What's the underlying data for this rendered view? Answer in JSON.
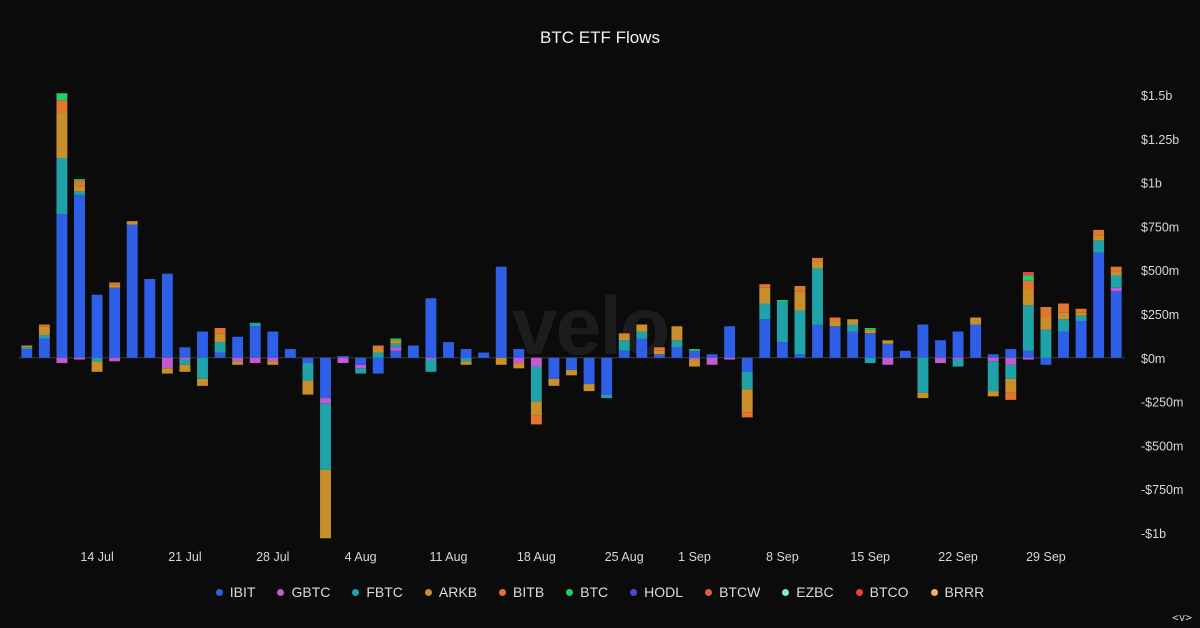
{
  "chart_data": {
    "type": "bar",
    "stacked": true,
    "title": "BTC ETF Flows",
    "watermark": "velo",
    "xlabel": "",
    "ylabel": "",
    "ylim": [
      -1000,
      1500
    ],
    "y_ticks": [
      {
        "value": 1500,
        "label": "$1.5b"
      },
      {
        "value": 1250,
        "label": "$1.25b"
      },
      {
        "value": 1000,
        "label": "$1b"
      },
      {
        "value": 750,
        "label": "$750m"
      },
      {
        "value": 500,
        "label": "$500m"
      },
      {
        "value": 250,
        "label": "$250m"
      },
      {
        "value": 0,
        "label": "$0m"
      },
      {
        "value": -250,
        "label": "-$250m"
      },
      {
        "value": -500,
        "label": "-$500m"
      },
      {
        "value": -750,
        "label": "-$750m"
      },
      {
        "value": -1000,
        "label": "-$1b"
      }
    ],
    "x_ticks": [
      {
        "bar": 4,
        "label": "14 Jul"
      },
      {
        "bar": 9,
        "label": "21 Jul"
      },
      {
        "bar": 14,
        "label": "28 Jul"
      },
      {
        "bar": 19,
        "label": "4 Aug"
      },
      {
        "bar": 24,
        "label": "11 Aug"
      },
      {
        "bar": 29,
        "label": "18 Aug"
      },
      {
        "bar": 34,
        "label": "25 Aug"
      },
      {
        "bar": 38,
        "label": "1 Sep"
      },
      {
        "bar": 43,
        "label": "8 Sep"
      },
      {
        "bar": 48,
        "label": "15 Sep"
      },
      {
        "bar": 53,
        "label": "22 Sep"
      },
      {
        "bar": 58,
        "label": "29 Sep"
      }
    ],
    "legend_position": "bottom",
    "series": [
      {
        "name": "IBIT",
        "color": "#2f5fe6",
        "values": [
          50,
          110,
          820,
          930,
          360,
          400,
          760,
          450,
          480,
          60,
          150,
          30,
          120,
          180,
          150,
          50,
          -30,
          -230,
          10,
          -40,
          -90,
          40,
          70,
          340,
          90,
          50,
          30,
          520,
          50,
          0,
          -120,
          -70,
          -150,
          -210,
          40,
          110,
          20,
          60,
          40,
          20,
          180,
          -80,
          220,
          90,
          20,
          190,
          180,
          150,
          140,
          80,
          40,
          190,
          100,
          150,
          190,
          20,
          50,
          40,
          -40,
          150,
          210,
          600,
          380
        ]
      },
      {
        "name": "GBTC",
        "color": "#c45ad0",
        "values": [
          0,
          0,
          -30,
          -10,
          0,
          -20,
          0,
          0,
          -60,
          -10,
          0,
          0,
          -20,
          -30,
          -20,
          0,
          0,
          -30,
          -30,
          -20,
          0,
          20,
          0,
          -10,
          0,
          0,
          0,
          0,
          -30,
          -50,
          0,
          0,
          0,
          0,
          0,
          0,
          0,
          0,
          -10,
          -40,
          -10,
          0,
          0,
          0,
          0,
          0,
          0,
          0,
          0,
          -40,
          0,
          0,
          -30,
          -10,
          0,
          -20,
          -40,
          -10,
          0,
          0,
          0,
          0,
          20
        ]
      },
      {
        "name": "FBTC",
        "color": "#1fa3a8",
        "values": [
          10,
          20,
          320,
          20,
          -20,
          0,
          0,
          0,
          0,
          -30,
          -120,
          60,
          0,
          20,
          0,
          0,
          -100,
          -380,
          0,
          -30,
          30,
          20,
          0,
          -70,
          0,
          -20,
          0,
          0,
          0,
          -200,
          0,
          0,
          0,
          -20,
          60,
          40,
          0,
          40,
          0,
          0,
          0,
          -100,
          90,
          230,
          250,
          320,
          0,
          40,
          -30,
          0,
          0,
          -200,
          0,
          -40,
          0,
          -170,
          -80,
          260,
          160,
          70,
          30,
          70,
          70
        ]
      },
      {
        "name": "ARKB",
        "color": "#c98f2a",
        "values": [
          10,
          50,
          260,
          30,
          -60,
          20,
          20,
          0,
          -30,
          -40,
          -40,
          50,
          -20,
          0,
          -20,
          0,
          -80,
          -390,
          0,
          0,
          20,
          20,
          0,
          0,
          0,
          -20,
          0,
          -40,
          -30,
          -80,
          -40,
          -30,
          -40,
          0,
          30,
          40,
          20,
          80,
          -40,
          0,
          0,
          -130,
          90,
          0,
          110,
          40,
          30,
          30,
          20,
          20,
          0,
          -30,
          0,
          0,
          40,
          -30,
          -80,
          90,
          70,
          40,
          20,
          30,
          20
        ]
      },
      {
        "name": "BITB",
        "color": "#e2762e",
        "values": [
          0,
          10,
          70,
          30,
          0,
          10,
          0,
          0,
          0,
          0,
          0,
          30,
          0,
          0,
          0,
          0,
          0,
          0,
          0,
          0,
          20,
          0,
          0,
          0,
          0,
          0,
          0,
          0,
          0,
          -50,
          0,
          0,
          0,
          0,
          10,
          0,
          20,
          0,
          0,
          0,
          0,
          -30,
          20,
          0,
          30,
          20,
          20,
          0,
          0,
          0,
          0,
          0,
          0,
          0,
          0,
          0,
          -40,
          50,
          60,
          50,
          20,
          30,
          30
        ]
      },
      {
        "name": "BTC",
        "color": "#1fcf6a",
        "values": [
          0,
          0,
          40,
          10,
          0,
          0,
          0,
          0,
          0,
          0,
          0,
          0,
          0,
          0,
          0,
          0,
          0,
          0,
          0,
          0,
          0,
          10,
          0,
          0,
          0,
          0,
          0,
          0,
          0,
          0,
          0,
          0,
          0,
          0,
          0,
          0,
          0,
          0,
          10,
          0,
          0,
          0,
          0,
          10,
          0,
          0,
          0,
          0,
          10,
          0,
          0,
          0,
          0,
          0,
          0,
          0,
          0,
          30,
          0,
          0,
          0,
          0,
          0
        ]
      },
      {
        "name": "HODL",
        "color": "#4a4ad8",
        "values": [
          0,
          0,
          0,
          0,
          0,
          0,
          0,
          0,
          0,
          0,
          0,
          0,
          0,
          0,
          0,
          0,
          0,
          0,
          0,
          0,
          0,
          0,
          0,
          0,
          0,
          0,
          0,
          0,
          0,
          0,
          0,
          0,
          0,
          0,
          0,
          0,
          0,
          0,
          0,
          0,
          0,
          0,
          0,
          0,
          0,
          0,
          0,
          0,
          0,
          0,
          0,
          0,
          0,
          0,
          0,
          0,
          0,
          0,
          0,
          0,
          0,
          0,
          0
        ]
      },
      {
        "name": "BTCW",
        "color": "#e0603a",
        "values": [
          0,
          0,
          0,
          0,
          0,
          0,
          0,
          0,
          0,
          0,
          0,
          0,
          0,
          0,
          0,
          0,
          0,
          0,
          0,
          0,
          0,
          0,
          0,
          0,
          0,
          0,
          0,
          0,
          0,
          0,
          0,
          0,
          0,
          0,
          0,
          0,
          0,
          0,
          0,
          0,
          0,
          0,
          0,
          0,
          0,
          0,
          0,
          0,
          0,
          0,
          0,
          0,
          0,
          0,
          0,
          0,
          0,
          0,
          0,
          0,
          0,
          0,
          0
        ]
      },
      {
        "name": "EZBC",
        "color": "#7fe8d6",
        "values": [
          0,
          0,
          0,
          0,
          0,
          0,
          0,
          0,
          0,
          0,
          0,
          0,
          0,
          0,
          0,
          0,
          0,
          0,
          0,
          0,
          0,
          0,
          0,
          0,
          0,
          0,
          0,
          0,
          0,
          0,
          0,
          0,
          0,
          0,
          0,
          0,
          0,
          0,
          0,
          0,
          0,
          0,
          0,
          0,
          0,
          0,
          0,
          0,
          0,
          0,
          0,
          0,
          0,
          0,
          0,
          0,
          0,
          0,
          0,
          0,
          0,
          0,
          0
        ]
      },
      {
        "name": "BTCO",
        "color": "#e8453c",
        "values": [
          0,
          0,
          0,
          0,
          0,
          0,
          0,
          0,
          0,
          0,
          0,
          0,
          0,
          0,
          0,
          0,
          0,
          0,
          0,
          0,
          0,
          0,
          0,
          0,
          0,
          0,
          0,
          0,
          0,
          0,
          0,
          0,
          0,
          0,
          0,
          0,
          0,
          0,
          0,
          0,
          0,
          0,
          0,
          0,
          0,
          0,
          0,
          0,
          0,
          0,
          0,
          0,
          0,
          0,
          0,
          0,
          0,
          20,
          0,
          0,
          0,
          0,
          0
        ]
      },
      {
        "name": "BRRR",
        "color": "#f0b060",
        "values": [
          0,
          0,
          0,
          0,
          0,
          0,
          0,
          0,
          0,
          0,
          0,
          0,
          0,
          0,
          0,
          0,
          0,
          0,
          0,
          0,
          0,
          0,
          0,
          0,
          0,
          0,
          0,
          0,
          0,
          0,
          0,
          0,
          0,
          0,
          0,
          0,
          0,
          0,
          0,
          0,
          0,
          0,
          0,
          0,
          0,
          0,
          0,
          0,
          0,
          0,
          0,
          0,
          0,
          0,
          0,
          0,
          0,
          0,
          0,
          0,
          0,
          0,
          0
        ]
      }
    ]
  },
  "corner_mark": "<v>"
}
